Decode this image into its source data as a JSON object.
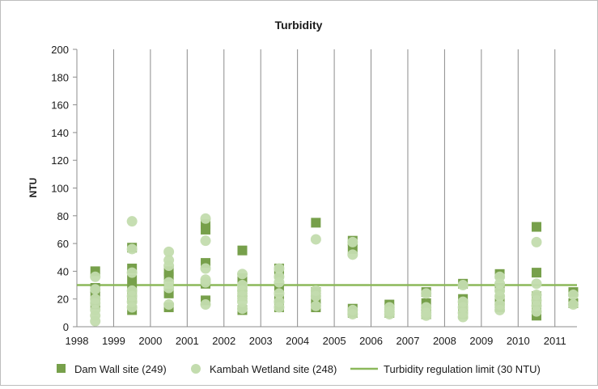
{
  "chart_data": {
    "type": "scatter",
    "title": "Turbidity",
    "ylabel": "NTU",
    "xlabel": "",
    "ylim": [
      0,
      200
    ],
    "xlim": [
      1998,
      2011.6
    ],
    "yticks": [
      0,
      20,
      40,
      60,
      80,
      100,
      120,
      140,
      160,
      180,
      200
    ],
    "xticks": [
      "1998",
      "1999",
      "2000",
      "2001",
      "2002",
      "2003",
      "2004",
      "2005",
      "2006",
      "2007",
      "2008",
      "2009",
      "2010",
      "2011"
    ],
    "grid": {
      "x": "vertical major gridlines",
      "y": "none"
    },
    "legend_position": "bottom",
    "series": [
      {
        "name": "Dam Wall site (249)",
        "marker": "square",
        "color": "#77a04b",
        "points": [
          [
            1998.5,
            40
          ],
          [
            1998.5,
            28
          ],
          [
            1998.5,
            22
          ],
          [
            1998.5,
            16
          ],
          [
            1999.5,
            57
          ],
          [
            1999.5,
            42
          ],
          [
            1999.5,
            34
          ],
          [
            1999.5,
            27
          ],
          [
            1999.5,
            20
          ],
          [
            1999.5,
            12
          ],
          [
            2000.5,
            40
          ],
          [
            2000.5,
            36
          ],
          [
            2000.5,
            24
          ],
          [
            2000.5,
            14
          ],
          [
            2001.5,
            74
          ],
          [
            2001.5,
            70
          ],
          [
            2001.5,
            46
          ],
          [
            2001.5,
            31
          ],
          [
            2001.5,
            19
          ],
          [
            2002.5,
            55
          ],
          [
            2002.5,
            35
          ],
          [
            2002.5,
            28
          ],
          [
            2002.5,
            22
          ],
          [
            2002.5,
            12
          ],
          [
            2003.5,
            42
          ],
          [
            2003.5,
            38
          ],
          [
            2003.5,
            28
          ],
          [
            2003.5,
            20
          ],
          [
            2003.5,
            14
          ],
          [
            2004.5,
            75
          ],
          [
            2004.5,
            25
          ],
          [
            2004.5,
            19
          ],
          [
            2004.5,
            14
          ],
          [
            2005.5,
            62
          ],
          [
            2005.5,
            56
          ],
          [
            2005.5,
            13
          ],
          [
            2005.5,
            10
          ],
          [
            2006.5,
            16
          ],
          [
            2006.5,
            13
          ],
          [
            2006.5,
            10
          ],
          [
            2007.5,
            25
          ],
          [
            2007.5,
            17
          ],
          [
            2007.5,
            12
          ],
          [
            2007.5,
            9
          ],
          [
            2008.5,
            31
          ],
          [
            2008.5,
            20
          ],
          [
            2008.5,
            16
          ],
          [
            2008.5,
            12
          ],
          [
            2008.5,
            9
          ],
          [
            2009.5,
            38
          ],
          [
            2009.5,
            28
          ],
          [
            2009.5,
            20
          ],
          [
            2009.5,
            14
          ],
          [
            2010.5,
            72
          ],
          [
            2010.5,
            39
          ],
          [
            2010.5,
            22
          ],
          [
            2010.5,
            15
          ],
          [
            2010.5,
            8
          ],
          [
            2011.5,
            25
          ],
          [
            2011.5,
            17
          ]
        ]
      },
      {
        "name": "Kambah Wetland site (248)",
        "marker": "circle",
        "color": "#c3dcae",
        "points": [
          [
            1998.5,
            36
          ],
          [
            1998.5,
            27
          ],
          [
            1998.5,
            20
          ],
          [
            1998.5,
            17
          ],
          [
            1998.5,
            12
          ],
          [
            1998.5,
            8
          ],
          [
            1998.5,
            4
          ],
          [
            1999.5,
            76
          ],
          [
            1999.5,
            56
          ],
          [
            1999.5,
            39
          ],
          [
            1999.5,
            26
          ],
          [
            1999.5,
            22
          ],
          [
            1999.5,
            18
          ],
          [
            1999.5,
            14
          ],
          [
            2000.5,
            54
          ],
          [
            2000.5,
            48
          ],
          [
            2000.5,
            44
          ],
          [
            2000.5,
            32
          ],
          [
            2000.5,
            28
          ],
          [
            2000.5,
            16
          ],
          [
            2001.5,
            78
          ],
          [
            2001.5,
            62
          ],
          [
            2001.5,
            42
          ],
          [
            2001.5,
            34
          ],
          [
            2001.5,
            32
          ],
          [
            2001.5,
            16
          ],
          [
            2002.5,
            38
          ],
          [
            2002.5,
            30
          ],
          [
            2002.5,
            26
          ],
          [
            2002.5,
            22
          ],
          [
            2002.5,
            18
          ],
          [
            2002.5,
            13
          ],
          [
            2003.5,
            42
          ],
          [
            2003.5,
            36
          ],
          [
            2003.5,
            32
          ],
          [
            2003.5,
            24
          ],
          [
            2003.5,
            18
          ],
          [
            2003.5,
            14
          ],
          [
            2004.5,
            63
          ],
          [
            2004.5,
            26
          ],
          [
            2004.5,
            22
          ],
          [
            2004.5,
            15
          ],
          [
            2005.5,
            61
          ],
          [
            2005.5,
            52
          ],
          [
            2005.5,
            12
          ],
          [
            2005.5,
            9
          ],
          [
            2006.5,
            14
          ],
          [
            2006.5,
            11
          ],
          [
            2006.5,
            9
          ],
          [
            2007.5,
            24
          ],
          [
            2007.5,
            14
          ],
          [
            2007.5,
            10
          ],
          [
            2007.5,
            8
          ],
          [
            2008.5,
            30
          ],
          [
            2008.5,
            18
          ],
          [
            2008.5,
            14
          ],
          [
            2008.5,
            10
          ],
          [
            2008.5,
            7
          ],
          [
            2009.5,
            36
          ],
          [
            2009.5,
            31
          ],
          [
            2009.5,
            26
          ],
          [
            2009.5,
            22
          ],
          [
            2009.5,
            16
          ],
          [
            2009.5,
            12
          ],
          [
            2010.5,
            61
          ],
          [
            2010.5,
            31
          ],
          [
            2010.5,
            23
          ],
          [
            2010.5,
            19
          ],
          [
            2010.5,
            15
          ],
          [
            2010.5,
            11
          ],
          [
            2011.5,
            23
          ],
          [
            2011.5,
            16
          ]
        ]
      }
    ],
    "reference_lines": [
      {
        "name": "Turbidity regulation limit (30 NTU)",
        "y": 30,
        "color": "#8cb85a"
      }
    ]
  }
}
